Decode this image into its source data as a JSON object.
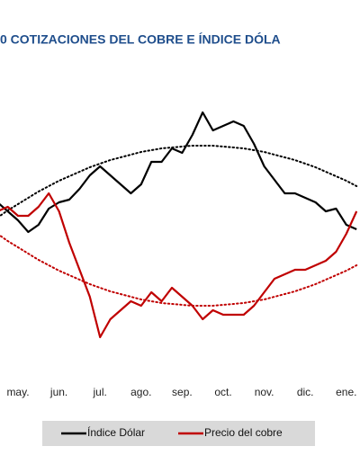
{
  "chart_data": {
    "type": "line",
    "title": "0 COTIZACIONES DEL COBRE E ÍNDICE DÓLA",
    "categories": [
      null,
      null,
      "may.",
      null,
      null,
      null,
      "jun.",
      null,
      null,
      null,
      "jul.",
      null,
      null,
      null,
      "ago.",
      null,
      null,
      null,
      "sep.",
      null,
      null,
      null,
      "oct.",
      null,
      null,
      null,
      "nov.",
      null,
      null,
      null,
      "dic.",
      null,
      null,
      null,
      "ene.",
      null
    ],
    "ylim": [
      0,
      300
    ],
    "series": [
      {
        "name": "Índice Dólar",
        "color": "#000000",
        "values": [
          175,
          165,
          155,
          142,
          150,
          168,
          175,
          178,
          190,
          205,
          215,
          205,
          195,
          185,
          195,
          220,
          220,
          235,
          230,
          250,
          275,
          255,
          260,
          265,
          260,
          240,
          215,
          200,
          185,
          185,
          180,
          175,
          165,
          168,
          150,
          145
        ],
        "trend": [
          158,
          166,
          173,
          180,
          187,
          193,
          199,
          204,
          209,
          214,
          218,
          222,
          225,
          228,
          231,
          233,
          235,
          236,
          237,
          238,
          238,
          238,
          237,
          236,
          235,
          233,
          231,
          228,
          225,
          222,
          218,
          214,
          209,
          204,
          199,
          193
        ]
      },
      {
        "name": "Precio del cobre",
        "color": "#c00000",
        "values": [
          165,
          170,
          160,
          160,
          170,
          185,
          165,
          130,
          100,
          70,
          25,
          45,
          55,
          65,
          60,
          75,
          65,
          80,
          70,
          60,
          45,
          55,
          50,
          50,
          50,
          60,
          75,
          90,
          95,
          100,
          100,
          105,
          110,
          120,
          140,
          165
        ],
        "trend": [
          140,
          132,
          125,
          118,
          111,
          105,
          99,
          94,
          89,
          84,
          80,
          76,
          73,
          70,
          67,
          65,
          63,
          62,
          61,
          60,
          60,
          60,
          61,
          62,
          63,
          65,
          67,
          70,
          73,
          76,
          80,
          84,
          89,
          94,
          99,
          105
        ]
      }
    ]
  }
}
